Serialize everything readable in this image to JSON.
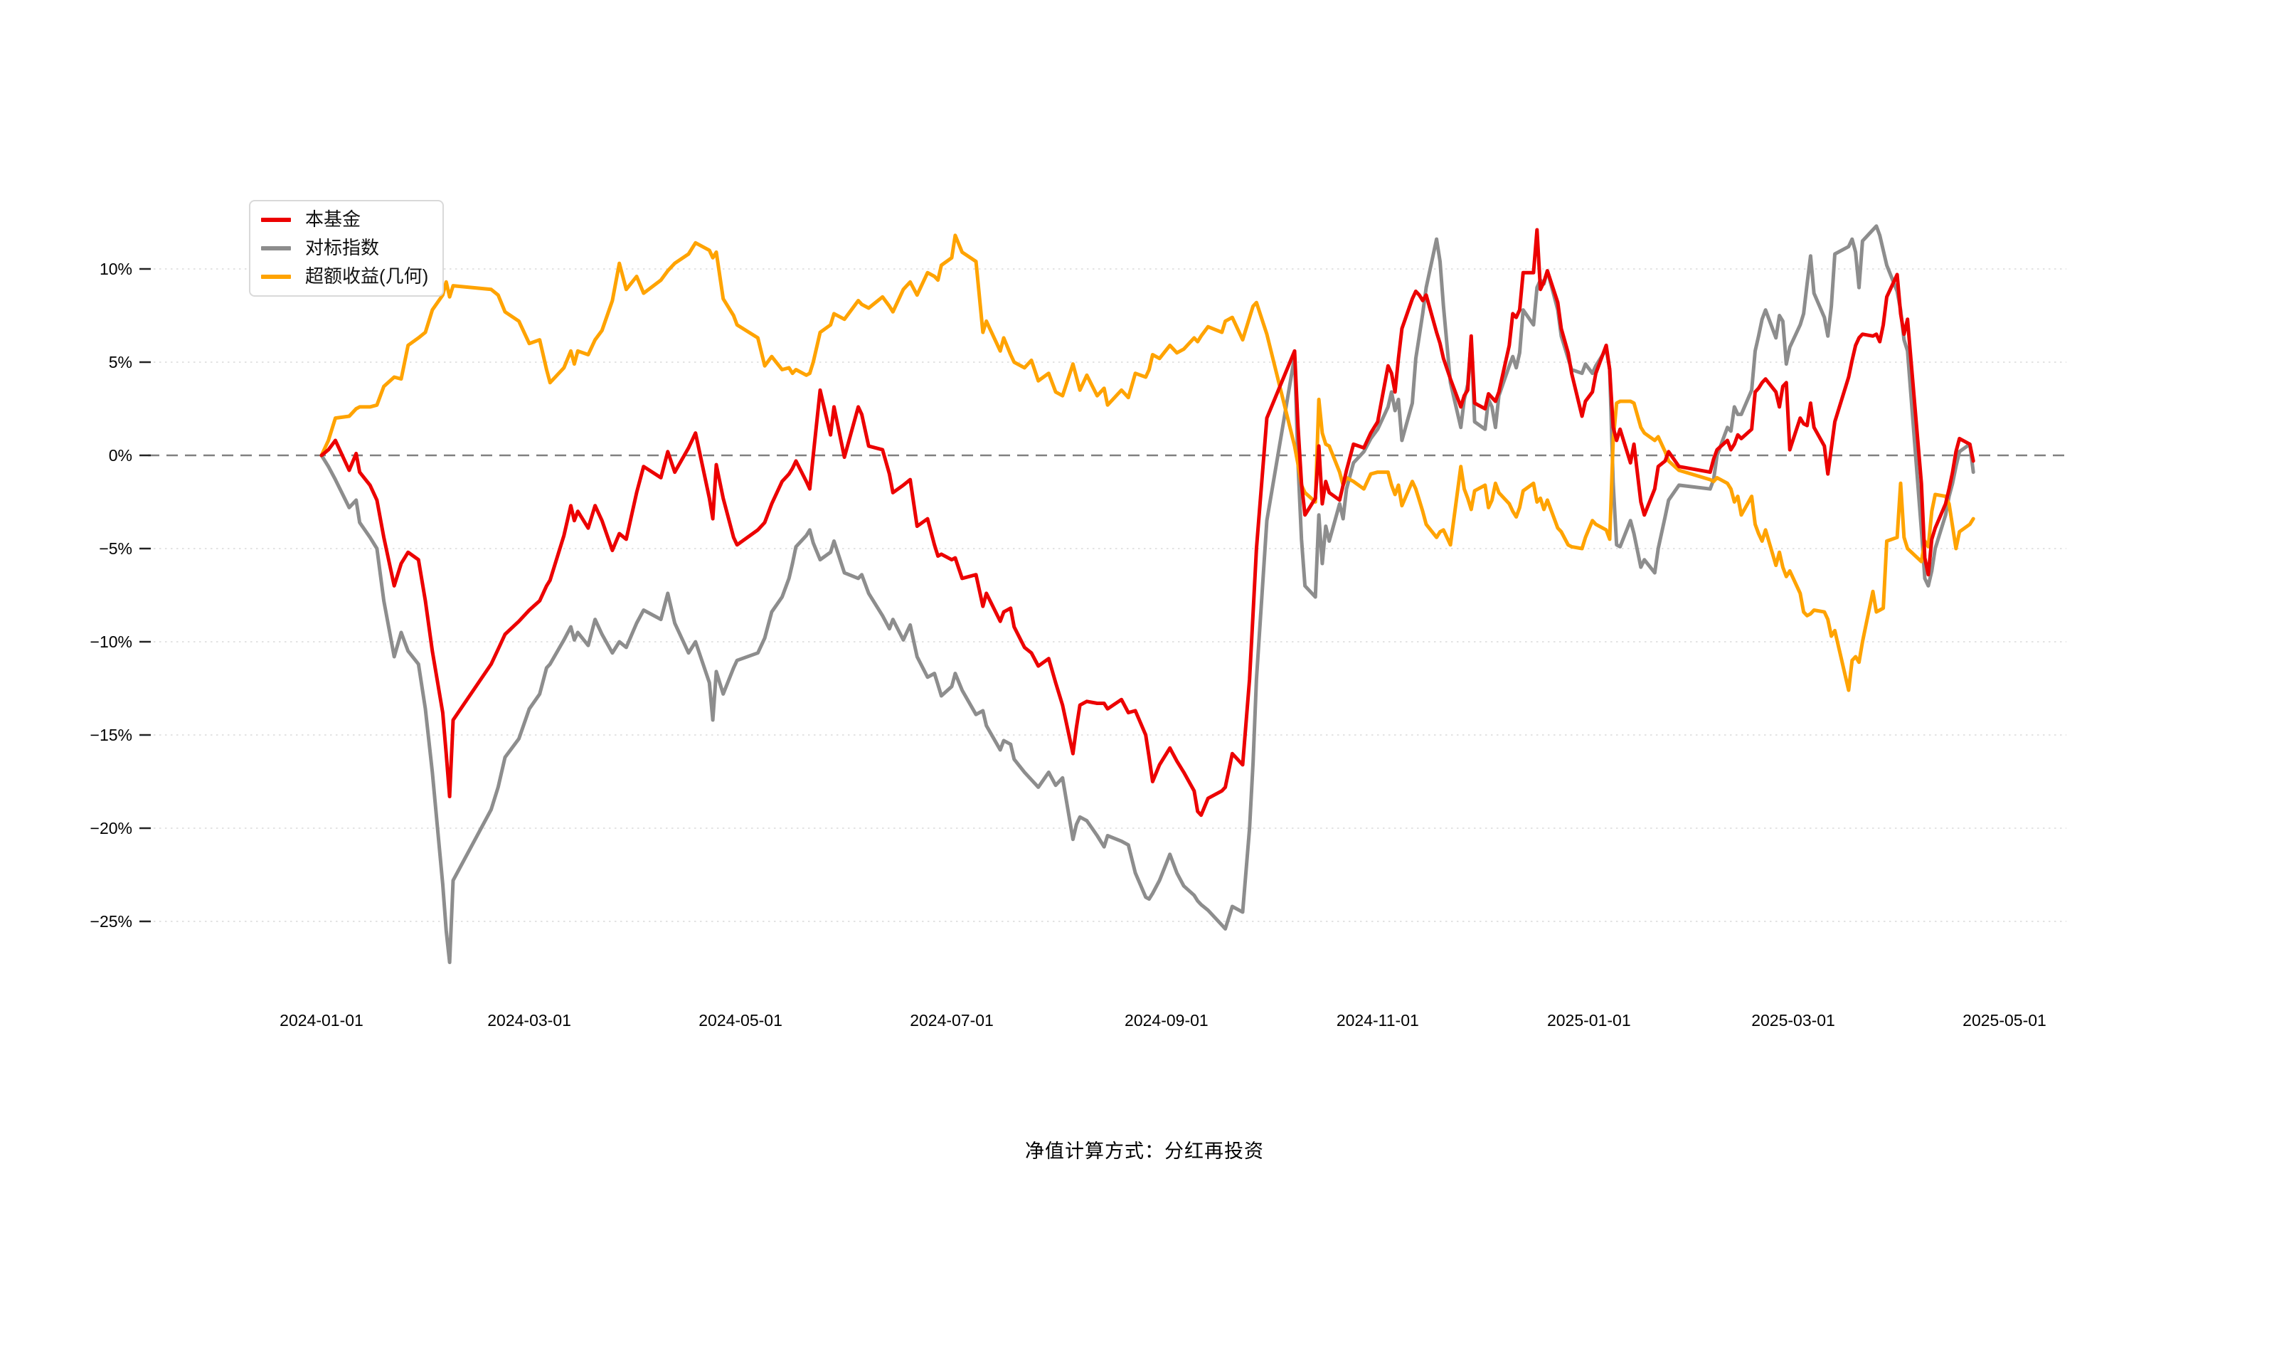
{
  "legend": {
    "items": [
      {
        "label": "本基金",
        "color": "#ec0000",
        "key": "fund"
      },
      {
        "label": "对标指数",
        "color": "#8d8d8d",
        "key": "benchmark-index"
      },
      {
        "label": "超额收益(几何)",
        "color": "#ffa300",
        "key": "excess-return"
      }
    ]
  },
  "footer": {
    "text": "净值计算方式：分红再投资"
  },
  "chart_data": {
    "type": "line",
    "title": "",
    "xlabel": "",
    "ylabel": "",
    "grid": "dotted-horizontal",
    "legend_position": "top-left",
    "zero_line": "dashed",
    "ylim": [
      -28,
      13.5
    ],
    "y_ticks": [
      {
        "label": "10%",
        "value": 10
      },
      {
        "label": "5%",
        "value": 5
      },
      {
        "label": "0%",
        "value": 0
      },
      {
        "label": "−5%",
        "value": -5
      },
      {
        "label": "−10%",
        "value": -10
      },
      {
        "label": "−15%",
        "value": -15
      },
      {
        "label": "−20%",
        "value": -20
      },
      {
        "label": "−25%",
        "value": -25
      }
    ],
    "x_ticks": [
      "2024-01-01",
      "2024-03-01",
      "2024-05-01",
      "2024-07-01",
      "2024-09-01",
      "2024-11-01",
      "2025-01-01",
      "2025-03-01",
      "2025-05-01"
    ],
    "dates": [
      "2024-01-01",
      "2024-01-03",
      "2024-01-05",
      "2024-01-09",
      "2024-01-11",
      "2024-01-12",
      "2024-01-15",
      "2024-01-17",
      "2024-01-19",
      "2024-01-22",
      "2024-01-24",
      "2024-01-26",
      "2024-01-29",
      "2024-01-31",
      "2024-02-02",
      "2024-02-05",
      "2024-02-06",
      "2024-02-07",
      "2024-02-08",
      "2024-02-19",
      "2024-02-21",
      "2024-02-23",
      "2024-02-27",
      "2024-03-01",
      "2024-03-04",
      "2024-03-06",
      "2024-03-07",
      "2024-03-11",
      "2024-03-13",
      "2024-03-14",
      "2024-03-15",
      "2024-03-18",
      "2024-03-20",
      "2024-03-22",
      "2024-03-25",
      "2024-03-27",
      "2024-03-29",
      "2024-04-01",
      "2024-04-03",
      "2024-04-08",
      "2024-04-10",
      "2024-04-12",
      "2024-04-16",
      "2024-04-18",
      "2024-04-22",
      "2024-04-23",
      "2024-04-24",
      "2024-04-26",
      "2024-04-29",
      "2024-04-30",
      "2024-05-06",
      "2024-05-08",
      "2024-05-10",
      "2024-05-13",
      "2024-05-15",
      "2024-05-16",
      "2024-05-17",
      "2024-05-20",
      "2024-05-21",
      "2024-05-22",
      "2024-05-24",
      "2024-05-27",
      "2024-05-28",
      "2024-05-31",
      "2024-06-04",
      "2024-06-05",
      "2024-06-07",
      "2024-06-11",
      "2024-06-13",
      "2024-06-14",
      "2024-06-17",
      "2024-06-19",
      "2024-06-21",
      "2024-06-24",
      "2024-06-26",
      "2024-06-27",
      "2024-06-28",
      "2024-07-01",
      "2024-07-02",
      "2024-07-04",
      "2024-07-08",
      "2024-07-10",
      "2024-07-11",
      "2024-07-15",
      "2024-07-16",
      "2024-07-18",
      "2024-07-19",
      "2024-07-22",
      "2024-07-24",
      "2024-07-26",
      "2024-07-29",
      "2024-07-31",
      "2024-08-02",
      "2024-08-05",
      "2024-08-06",
      "2024-08-07",
      "2024-08-09",
      "2024-08-12",
      "2024-08-14",
      "2024-08-15",
      "2024-08-19",
      "2024-08-21",
      "2024-08-23",
      "2024-08-26",
      "2024-08-27",
      "2024-08-28",
      "2024-08-30",
      "2024-09-02",
      "2024-09-04",
      "2024-09-06",
      "2024-09-09",
      "2024-09-10",
      "2024-09-11",
      "2024-09-13",
      "2024-09-17",
      "2024-09-18",
      "2024-09-20",
      "2024-09-23",
      "2024-09-25",
      "2024-09-26",
      "2024-09-27",
      "2024-09-30",
      "2024-10-08",
      "2024-10-09",
      "2024-10-10",
      "2024-10-11",
      "2024-10-14",
      "2024-10-15",
      "2024-10-16",
      "2024-10-17",
      "2024-10-18",
      "2024-10-21",
      "2024-10-22",
      "2024-10-23",
      "2024-10-25",
      "2024-10-28",
      "2024-10-30",
      "2024-11-01",
      "2024-11-04",
      "2024-11-05",
      "2024-11-06",
      "2024-11-07",
      "2024-11-08",
      "2024-11-11",
      "2024-11-12",
      "2024-11-13",
      "2024-11-14",
      "2024-11-15",
      "2024-11-18",
      "2024-11-19",
      "2024-11-20",
      "2024-11-22",
      "2024-11-25",
      "2024-11-26",
      "2024-11-27",
      "2024-11-28",
      "2024-11-29",
      "2024-12-02",
      "2024-12-03",
      "2024-12-04",
      "2024-12-05",
      "2024-12-06",
      "2024-12-09",
      "2024-12-10",
      "2024-12-11",
      "2024-12-12",
      "2024-12-13",
      "2024-12-16",
      "2024-12-17",
      "2024-12-18",
      "2024-12-19",
      "2024-12-20",
      "2024-12-23",
      "2024-12-24",
      "2024-12-26",
      "2024-12-27",
      "2024-12-30",
      "2024-12-31",
      "2025-01-02",
      "2025-01-03",
      "2025-01-06",
      "2025-01-07",
      "2025-01-08",
      "2025-01-09",
      "2025-01-10",
      "2025-01-13",
      "2025-01-14",
      "2025-01-16",
      "2025-01-17",
      "2025-01-20",
      "2025-01-21",
      "2025-01-23",
      "2025-01-24",
      "2025-01-27",
      "2025-02-05",
      "2025-02-06",
      "2025-02-07",
      "2025-02-10",
      "2025-02-11",
      "2025-02-12",
      "2025-02-13",
      "2025-02-14",
      "2025-02-17",
      "2025-02-18",
      "2025-02-19",
      "2025-02-20",
      "2025-02-21",
      "2025-02-24",
      "2025-02-25",
      "2025-02-26",
      "2025-02-27",
      "2025-02-28",
      "2025-03-03",
      "2025-03-04",
      "2025-03-05",
      "2025-03-06",
      "2025-03-07",
      "2025-03-10",
      "2025-03-11",
      "2025-03-12",
      "2025-03-13",
      "2025-03-17",
      "2025-03-18",
      "2025-03-19",
      "2025-03-20",
      "2025-03-21",
      "2025-03-24",
      "2025-03-25",
      "2025-03-26",
      "2025-03-27",
      "2025-03-28",
      "2025-03-31",
      "2025-04-01",
      "2025-04-02",
      "2025-04-03",
      "2025-04-07",
      "2025-04-08",
      "2025-04-09",
      "2025-04-10",
      "2025-04-11",
      "2025-04-14",
      "2025-04-15",
      "2025-04-16",
      "2025-04-17",
      "2025-04-18",
      "2025-04-21",
      "2025-04-22"
    ],
    "series": [
      {
        "name": "本基金",
        "key": "fund",
        "color": "#ec0000",
        "values": [
          0,
          0.3,
          0.8,
          -0.8,
          0.1,
          -0.9,
          -1.6,
          -2.4,
          -4.4,
          -7.0,
          -5.8,
          -5.2,
          -5.6,
          -7.8,
          -10.5,
          -13.8,
          -16.0,
          -18.3,
          -14.2,
          -11.2,
          -10.4,
          -9.6,
          -8.9,
          -8.3,
          -7.8,
          -7.0,
          -6.7,
          -4.3,
          -2.7,
          -3.5,
          -3.0,
          -3.9,
          -2.7,
          -3.5,
          -5.1,
          -4.2,
          -4.5,
          -2.0,
          -0.6,
          -1.2,
          0.2,
          -0.9,
          0.4,
          1.2,
          -2.3,
          -3.4,
          -0.5,
          -2.3,
          -4.4,
          -4.8,
          -4.0,
          -3.6,
          -2.6,
          -1.4,
          -1.0,
          -0.7,
          -0.3,
          -1.4,
          -1.8,
          0.0,
          3.5,
          1.1,
          2.6,
          -0.1,
          2.6,
          2.2,
          0.5,
          0.3,
          -1.0,
          -2.0,
          -1.6,
          -1.3,
          -3.8,
          -3.4,
          -4.8,
          -5.4,
          -5.3,
          -5.6,
          -5.5,
          -6.6,
          -6.4,
          -8.1,
          -7.4,
          -8.9,
          -8.4,
          -8.2,
          -9.2,
          -10.3,
          -10.6,
          -11.3,
          -10.9,
          -12.2,
          -13.4,
          -16.0,
          -14.6,
          -13.4,
          -13.2,
          -13.3,
          -13.3,
          -13.6,
          -13.1,
          -13.8,
          -13.7,
          -15.0,
          -16.2,
          -17.5,
          -16.6,
          -15.7,
          -16.4,
          -17.0,
          -18.0,
          -19.1,
          -19.3,
          -18.4,
          -18.0,
          -17.8,
          -16.0,
          -16.6,
          -12.0,
          -8.5,
          -5.0,
          2.0,
          5.6,
          1.5,
          -1.5,
          -3.2,
          -2.3,
          0.5,
          -2.6,
          -1.4,
          -2.0,
          -2.4,
          -1.6,
          -0.8,
          0.6,
          0.4,
          1.2,
          1.8,
          4.8,
          4.4,
          3.4,
          5.2,
          6.8,
          8.4,
          8.8,
          8.6,
          8.3,
          8.6,
          6.6,
          6.0,
          5.2,
          4.1,
          2.6,
          3.2,
          3.5,
          6.4,
          2.8,
          2.5,
          3.3,
          3.1,
          2.9,
          3.4,
          5.9,
          7.6,
          7.4,
          7.8,
          9.8,
          9.8,
          12.1,
          8.9,
          9.3,
          9.9,
          8.2,
          6.8,
          5.5,
          4.4,
          2.1,
          2.9,
          3.4,
          4.4,
          5.9,
          4.6,
          1.5,
          0.8,
          1.4,
          -0.4,
          0.6,
          -2.5,
          -3.2,
          -1.8,
          -0.6,
          -0.3,
          0.2,
          -0.6,
          -0.9,
          -0.2,
          0.3,
          0.8,
          0.3,
          0.6,
          1.1,
          0.9,
          1.4,
          3.4,
          3.6,
          3.9,
          4.1,
          3.4,
          2.6,
          3.7,
          3.9,
          0.3,
          2.0,
          1.7,
          1.6,
          2.8,
          1.5,
          0.5,
          -1.0,
          0.4,
          1.8,
          4.2,
          5.1,
          5.9,
          6.3,
          6.5,
          6.4,
          6.5,
          6.1,
          7.0,
          8.5,
          9.7,
          7.6,
          6.5,
          7.3,
          -1.5,
          -5.5,
          -6.4,
          -4.5,
          -3.9,
          -2.6,
          -1.8,
          -0.9,
          0.2,
          0.9,
          0.6,
          -0.3
        ]
      },
      {
        "name": "对标指数",
        "key": "benchmark-index",
        "color": "#8d8d8d",
        "values": [
          0,
          -0.6,
          -1.3,
          -2.8,
          -2.4,
          -3.6,
          -4.4,
          -5.0,
          -7.8,
          -10.8,
          -9.5,
          -10.5,
          -11.2,
          -13.6,
          -17.0,
          -23.0,
          -25.5,
          -27.2,
          -22.8,
          -19.0,
          -17.8,
          -16.2,
          -15.2,
          -13.6,
          -12.8,
          -11.4,
          -11.2,
          -9.9,
          -9.2,
          -9.9,
          -9.5,
          -10.2,
          -8.8,
          -9.6,
          -10.6,
          -10.0,
          -10.3,
          -9.0,
          -8.3,
          -8.8,
          -7.4,
          -9.0,
          -10.6,
          -10.0,
          -12.2,
          -14.2,
          -11.6,
          -12.8,
          -11.4,
          -11.0,
          -10.6,
          -9.8,
          -8.4,
          -7.6,
          -6.6,
          -5.8,
          -4.9,
          -4.3,
          -4.0,
          -4.7,
          -5.6,
          -5.2,
          -4.6,
          -6.3,
          -6.6,
          -6.4,
          -7.4,
          -8.6,
          -9.3,
          -8.8,
          -9.9,
          -9.1,
          -10.8,
          -11.9,
          -11.7,
          -12.3,
          -12.9,
          -12.4,
          -11.7,
          -12.6,
          -13.9,
          -13.7,
          -14.5,
          -15.8,
          -15.3,
          -15.5,
          -16.3,
          -17.0,
          -17.4,
          -17.8,
          -17.0,
          -17.7,
          -17.3,
          -20.6,
          -19.8,
          -19.4,
          -19.6,
          -20.4,
          -21.0,
          -20.4,
          -20.7,
          -20.9,
          -22.4,
          -23.7,
          -23.8,
          -23.5,
          -22.8,
          -21.4,
          -22.4,
          -23.1,
          -23.6,
          -23.9,
          -24.1,
          -24.4,
          -25.2,
          -25.4,
          -24.2,
          -24.5,
          -20.0,
          -16.5,
          -12.0,
          -3.5,
          5.3,
          -0.5,
          -4.5,
          -7.0,
          -7.6,
          -3.2,
          -5.8,
          -3.8,
          -4.6,
          -2.6,
          -3.4,
          -1.8,
          -0.4,
          0.2,
          0.9,
          1.4,
          2.6,
          3.4,
          2.4,
          3.0,
          0.8,
          2.8,
          5.2,
          6.4,
          7.6,
          9.0,
          11.6,
          10.4,
          8.0,
          3.9,
          1.5,
          3.0,
          3.8,
          6.2,
          1.8,
          1.4,
          3.0,
          2.6,
          1.5,
          3.2,
          4.8,
          5.3,
          4.7,
          5.5,
          7.8,
          7.0,
          9.0,
          9.4,
          9.2,
          9.9,
          7.8,
          6.4,
          5.2,
          4.6,
          4.4,
          4.9,
          4.4,
          4.8,
          5.7,
          4.6,
          -1.5,
          -4.8,
          -4.9,
          -3.5,
          -4.2,
          -6.0,
          -5.6,
          -6.3,
          -5.0,
          -3.3,
          -2.4,
          -1.6,
          -1.8,
          -1.3,
          0.0,
          1.5,
          1.3,
          2.6,
          2.2,
          2.2,
          3.5,
          5.6,
          6.4,
          7.3,
          7.8,
          6.3,
          7.5,
          7.2,
          4.9,
          5.8,
          7.0,
          7.6,
          9.2,
          10.7,
          8.7,
          7.4,
          6.4,
          8.0,
          10.8,
          11.2,
          11.6,
          10.9,
          9.0,
          11.5,
          12.1,
          12.3,
          11.8,
          11.0,
          10.2,
          8.8,
          7.8,
          6.2,
          5.6,
          -4.0,
          -6.6,
          -7.0,
          -6.2,
          -5.0,
          -3.2,
          -2.2,
          -1.5,
          -0.6,
          0.2,
          0.6,
          -0.9
        ]
      },
      {
        "name": "超额收益(几何)",
        "key": "excess-return",
        "color": "#ffa300",
        "values": [
          0,
          0.8,
          2.0,
          2.1,
          2.5,
          2.6,
          2.6,
          2.7,
          3.7,
          4.2,
          4.1,
          5.9,
          6.3,
          6.6,
          7.8,
          8.6,
          9.3,
          8.5,
          9.1,
          8.9,
          8.6,
          7.7,
          7.2,
          6.0,
          6.2,
          4.6,
          3.9,
          4.7,
          5.6,
          4.9,
          5.6,
          5.4,
          6.2,
          6.7,
          8.3,
          10.3,
          8.9,
          9.6,
          8.7,
          9.4,
          9.9,
          10.3,
          10.8,
          11.4,
          11.0,
          10.6,
          10.9,
          8.4,
          7.5,
          7.0,
          6.3,
          4.8,
          5.3,
          4.6,
          4.7,
          4.4,
          4.6,
          4.3,
          4.4,
          5.0,
          6.6,
          7.0,
          7.6,
          7.3,
          8.3,
          8.1,
          7.9,
          8.5,
          8.0,
          7.7,
          8.9,
          9.3,
          8.6,
          9.8,
          9.6,
          9.4,
          10.2,
          10.6,
          11.8,
          10.9,
          10.4,
          6.6,
          7.2,
          5.6,
          6.3,
          5.4,
          5.0,
          4.7,
          5.1,
          4.0,
          4.4,
          3.4,
          3.2,
          4.9,
          4.2,
          3.5,
          4.3,
          3.2,
          3.6,
          2.7,
          3.5,
          3.1,
          4.4,
          4.2,
          4.6,
          5.4,
          5.2,
          5.9,
          5.5,
          5.7,
          6.3,
          6.1,
          6.4,
          6.9,
          6.6,
          7.2,
          7.4,
          6.2,
          7.4,
          8.0,
          8.2,
          6.5,
          0.5,
          -0.5,
          -1.6,
          -2.0,
          -2.5,
          3.0,
          1.2,
          0.6,
          0.5,
          -0.9,
          -1.6,
          -1.2,
          -1.4,
          -1.8,
          -1.0,
          -0.9,
          -0.9,
          -1.6,
          -2.1,
          -1.6,
          -2.7,
          -1.4,
          -1.8,
          -2.4,
          -3.0,
          -3.7,
          -4.4,
          -4.1,
          -4.0,
          -4.8,
          -0.6,
          -1.8,
          -2.3,
          -2.9,
          -1.9,
          -1.6,
          -2.8,
          -2.4,
          -1.5,
          -2.0,
          -2.6,
          -3.0,
          -3.3,
          -2.8,
          -1.9,
          -1.5,
          -2.5,
          -2.3,
          -2.9,
          -2.4,
          -3.9,
          -4.1,
          -4.8,
          -4.9,
          -5.0,
          -4.4,
          -3.5,
          -3.7,
          -4.0,
          -4.5,
          0.8,
          2.8,
          2.9,
          2.9,
          2.8,
          1.5,
          1.2,
          0.8,
          1.0,
          0.2,
          -0.3,
          -0.8,
          -1.3,
          -1.4,
          -1.2,
          -1.5,
          -1.8,
          -2.5,
          -2.2,
          -3.2,
          -2.2,
          -3.7,
          -4.2,
          -4.6,
          -4.0,
          -5.9,
          -5.2,
          -6.0,
          -6.5,
          -6.2,
          -7.4,
          -8.4,
          -8.6,
          -8.5,
          -8.3,
          -8.4,
          -8.8,
          -9.7,
          -9.4,
          -12.6,
          -11.0,
          -10.8,
          -11.1,
          -10.0,
          -7.3,
          -8.4,
          -8.3,
          -8.2,
          -4.6,
          -4.4,
          -1.5,
          -4.4,
          -5.0,
          -5.7,
          -4.6,
          -4.9,
          -3.0,
          -2.1,
          -2.2,
          -2.6,
          -3.8,
          -5.0,
          -4.1,
          -3.7,
          -3.4
        ]
      }
    ]
  }
}
